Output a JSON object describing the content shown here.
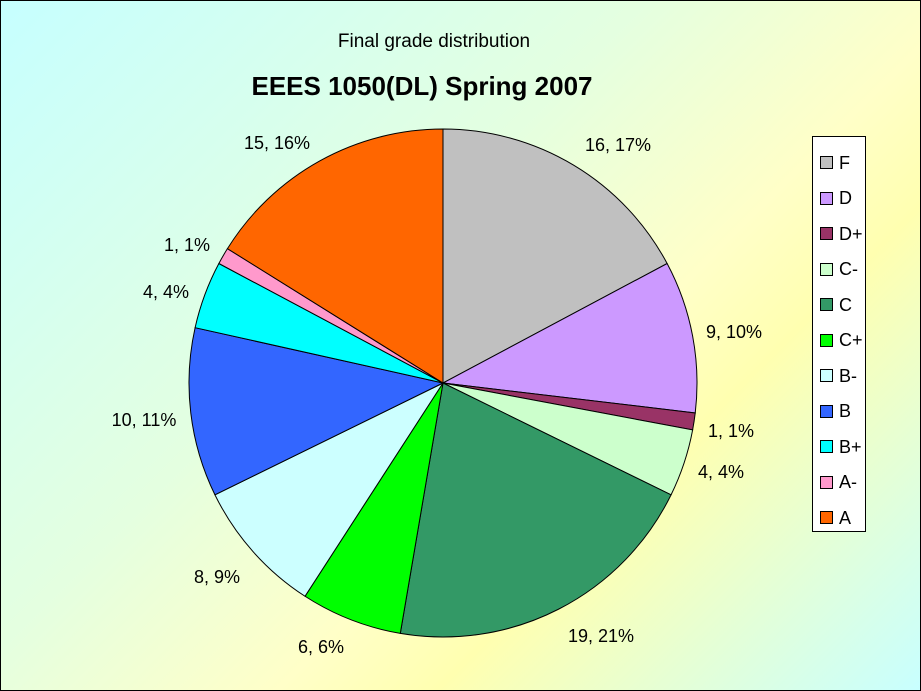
{
  "chart_data": {
    "type": "pie",
    "subtitle": "Final grade distribution",
    "title": "EEES 1050(DL) Spring 2007",
    "legend_position": "right",
    "slices": [
      {
        "name": "F",
        "value": 16,
        "percent": "17%",
        "label": "16, 17%",
        "color": "#c0c0c0"
      },
      {
        "name": "D",
        "value": 9,
        "percent": "10%",
        "label": "9, 10%",
        "color": "#cc99ff"
      },
      {
        "name": "D+",
        "value": 1,
        "percent": "1%",
        "label": "1, 1%",
        "color": "#993366"
      },
      {
        "name": "C-",
        "value": 4,
        "percent": "4%",
        "label": "4, 4%",
        "color": "#ccffcc"
      },
      {
        "name": "C",
        "value": 19,
        "percent": "21%",
        "label": "19, 21%",
        "color": "#339966"
      },
      {
        "name": "C+",
        "value": 6,
        "percent": "6%",
        "label": "6, 6%",
        "color": "#00ff00"
      },
      {
        "name": "B-",
        "value": 8,
        "percent": "9%",
        "label": "8, 9%",
        "color": "#ccffff"
      },
      {
        "name": "B",
        "value": 10,
        "percent": "11%",
        "label": "10, 11%",
        "color": "#3366ff"
      },
      {
        "name": "B+",
        "value": 4,
        "percent": "4%",
        "label": "4, 4%",
        "color": "#00ffff"
      },
      {
        "name": "A-",
        "value": 1,
        "percent": "1%",
        "label": "1, 1%",
        "color": "#ff99cc"
      },
      {
        "name": "A",
        "value": 15,
        "percent": "16%",
        "label": "15, 16%",
        "color": "#ff6600"
      }
    ]
  }
}
